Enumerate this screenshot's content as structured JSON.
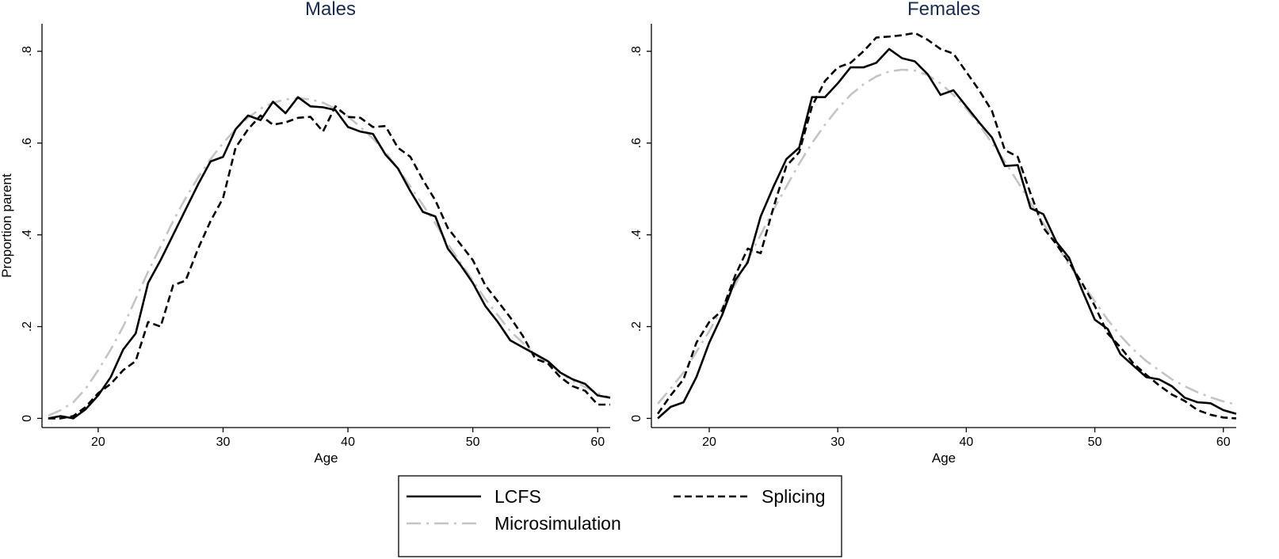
{
  "chart_data": [
    {
      "type": "line",
      "title": "Males",
      "xlabel": "Age",
      "ylabel": "Proportion parent",
      "xlim": [
        15.5,
        61
      ],
      "ylim": [
        -0.02,
        0.86
      ],
      "x_ticks": [
        20,
        30,
        40,
        50,
        60
      ],
      "x_tick_labels": [
        "20",
        "30",
        "40",
        "50",
        "60"
      ],
      "y_ticks": [
        0,
        0.2,
        0.4,
        0.6,
        0.8
      ],
      "y_tick_labels": [
        "0",
        ".2",
        ".4",
        ".6",
        ".8"
      ],
      "grid": false,
      "x": [
        16,
        17,
        18,
        19,
        20,
        21,
        22,
        23,
        24,
        25,
        26,
        27,
        28,
        29,
        30,
        31,
        32,
        33,
        34,
        35,
        36,
        37,
        38,
        39,
        40,
        41,
        42,
        43,
        44,
        45,
        46,
        47,
        48,
        49,
        50,
        51,
        52,
        53,
        54,
        55,
        56,
        57,
        58,
        59,
        60,
        61
      ],
      "series": [
        {
          "name": "LCFS",
          "style": "solid",
          "color": "#000000",
          "values": [
            0.0,
            0.005,
            0.0,
            0.02,
            0.05,
            0.09,
            0.15,
            0.185,
            0.295,
            0.345,
            0.4,
            0.455,
            0.51,
            0.56,
            0.57,
            0.63,
            0.66,
            0.65,
            0.69,
            0.665,
            0.7,
            0.68,
            0.678,
            0.672,
            0.635,
            0.625,
            0.62,
            0.575,
            0.545,
            0.495,
            0.45,
            0.44,
            0.37,
            0.335,
            0.295,
            0.245,
            0.21,
            0.17,
            0.155,
            0.14,
            0.125,
            0.1,
            0.085,
            0.075,
            0.05,
            0.045
          ]
        },
        {
          "name": "Splicing",
          "style": "dashed",
          "color": "#000000",
          "values": [
            0.0,
            0.0,
            0.005,
            0.025,
            0.055,
            0.075,
            0.105,
            0.125,
            0.21,
            0.2,
            0.29,
            0.3,
            0.37,
            0.43,
            0.48,
            0.59,
            0.63,
            0.66,
            0.64,
            0.645,
            0.655,
            0.657,
            0.625,
            0.68,
            0.657,
            0.655,
            0.635,
            0.637,
            0.59,
            0.57,
            0.52,
            0.475,
            0.415,
            0.38,
            0.345,
            0.29,
            0.255,
            0.22,
            0.18,
            0.13,
            0.12,
            0.09,
            0.07,
            0.06,
            0.03,
            0.03
          ]
        },
        {
          "name": "Microsimulation",
          "style": "dashdot",
          "color": "#c4c4c4",
          "values": [
            0.006,
            0.018,
            0.035,
            0.065,
            0.105,
            0.15,
            0.2,
            0.26,
            0.32,
            0.375,
            0.43,
            0.48,
            0.525,
            0.565,
            0.6,
            0.63,
            0.655,
            0.675,
            0.688,
            0.695,
            0.698,
            0.695,
            0.688,
            0.675,
            0.658,
            0.635,
            0.61,
            0.58,
            0.545,
            0.505,
            0.465,
            0.425,
            0.38,
            0.34,
            0.3,
            0.26,
            0.225,
            0.19,
            0.165,
            0.14,
            0.12,
            0.1,
            0.082,
            0.068,
            0.055,
            0.045
          ]
        }
      ]
    },
    {
      "type": "line",
      "title": "Females",
      "xlabel": "Age",
      "ylabel": "",
      "xlim": [
        15.5,
        61
      ],
      "ylim": [
        -0.02,
        0.86
      ],
      "x_ticks": [
        20,
        30,
        40,
        50,
        60
      ],
      "x_tick_labels": [
        "20",
        "30",
        "40",
        "50",
        "60"
      ],
      "y_ticks": [
        0,
        0.2,
        0.4,
        0.6,
        0.8
      ],
      "y_tick_labels": [
        "0",
        ".2",
        ".4",
        ".6",
        ".8"
      ],
      "grid": false,
      "x": [
        16,
        17,
        18,
        19,
        20,
        21,
        22,
        23,
        24,
        25,
        26,
        27,
        28,
        29,
        30,
        31,
        32,
        33,
        34,
        35,
        36,
        37,
        38,
        39,
        40,
        41,
        42,
        43,
        44,
        45,
        46,
        47,
        48,
        49,
        50,
        51,
        52,
        53,
        54,
        55,
        56,
        57,
        58,
        59,
        60,
        61
      ],
      "series": [
        {
          "name": "LCFS",
          "style": "solid",
          "color": "#000000",
          "values": [
            0.0,
            0.025,
            0.035,
            0.09,
            0.165,
            0.225,
            0.3,
            0.34,
            0.44,
            0.505,
            0.565,
            0.59,
            0.7,
            0.7,
            0.73,
            0.765,
            0.765,
            0.775,
            0.805,
            0.785,
            0.778,
            0.75,
            0.705,
            0.715,
            0.68,
            0.645,
            0.612,
            0.55,
            0.552,
            0.458,
            0.445,
            0.385,
            0.35,
            0.28,
            0.215,
            0.195,
            0.14,
            0.115,
            0.09,
            0.085,
            0.07,
            0.045,
            0.035,
            0.033,
            0.018,
            0.01
          ]
        },
        {
          "name": "Splicing",
          "style": "dashed",
          "color": "#000000",
          "values": [
            0.01,
            0.05,
            0.085,
            0.165,
            0.21,
            0.235,
            0.31,
            0.37,
            0.36,
            0.46,
            0.55,
            0.58,
            0.68,
            0.735,
            0.765,
            0.775,
            0.8,
            0.83,
            0.832,
            0.835,
            0.84,
            0.825,
            0.805,
            0.795,
            0.755,
            0.715,
            0.67,
            0.585,
            0.57,
            0.49,
            0.415,
            0.38,
            0.34,
            0.295,
            0.245,
            0.185,
            0.155,
            0.12,
            0.095,
            0.072,
            0.052,
            0.038,
            0.018,
            0.008,
            0.002,
            0.0
          ]
        },
        {
          "name": "Microsimulation",
          "style": "dashdot",
          "color": "#c4c4c4",
          "values": [
            0.032,
            0.065,
            0.1,
            0.145,
            0.19,
            0.24,
            0.29,
            0.345,
            0.4,
            0.455,
            0.505,
            0.555,
            0.6,
            0.64,
            0.675,
            0.705,
            0.728,
            0.745,
            0.756,
            0.76,
            0.758,
            0.748,
            0.73,
            0.705,
            0.675,
            0.64,
            0.6,
            0.56,
            0.515,
            0.47,
            0.425,
            0.38,
            0.335,
            0.295,
            0.255,
            0.215,
            0.18,
            0.15,
            0.125,
            0.105,
            0.085,
            0.07,
            0.057,
            0.046,
            0.037,
            0.03
          ]
        }
      ]
    }
  ],
  "legend": {
    "placement": "bottom-center",
    "entries": [
      {
        "label": "LCFS",
        "style": "solid",
        "color": "#000000"
      },
      {
        "label": "Splicing",
        "style": "dashed",
        "color": "#000000"
      },
      {
        "label": "Microsimulation",
        "style": "dashdot",
        "color": "#c4c4c4"
      }
    ]
  }
}
